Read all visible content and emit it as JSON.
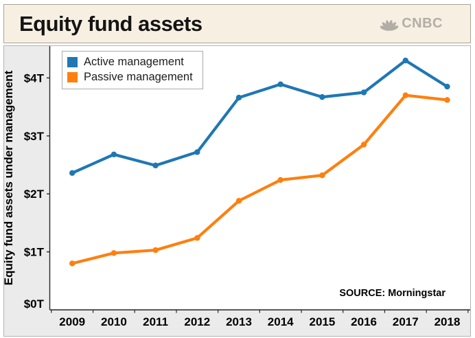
{
  "header": {
    "title": "Equity fund assets",
    "brand": "CNBC",
    "brand_color": "#b2ada6",
    "background": "#f7f0e2"
  },
  "chart_data": {
    "type": "line",
    "title": "Equity fund assets",
    "categories": [
      "2009",
      "2010",
      "2011",
      "2012",
      "2013",
      "2014",
      "2015",
      "2016",
      "2017",
      "2018"
    ],
    "series": [
      {
        "name": "Active management",
        "color": "#1f77b4",
        "values": [
          2.36,
          2.68,
          2.49,
          2.72,
          3.66,
          3.89,
          3.67,
          3.75,
          4.3,
          3.85
        ]
      },
      {
        "name": "Passive management",
        "color": "#ff7f0e",
        "values": [
          0.8,
          0.98,
          1.03,
          1.24,
          1.88,
          2.24,
          2.32,
          2.85,
          3.7,
          3.62
        ]
      }
    ],
    "xlabel": "",
    "ylabel": "Equity fund assets under management",
    "yticks": [
      {
        "value": 0,
        "label": "$0T"
      },
      {
        "value": 1,
        "label": "$1T"
      },
      {
        "value": 2,
        "label": "$2T"
      },
      {
        "value": 3,
        "label": "$3T"
      },
      {
        "value": 4,
        "label": "$4T"
      }
    ],
    "ylim": [
      0,
      4.55
    ],
    "grid": false,
    "legend_position": "top-left",
    "marker": "circle",
    "source_note": "SOURCE: Morningstar"
  }
}
